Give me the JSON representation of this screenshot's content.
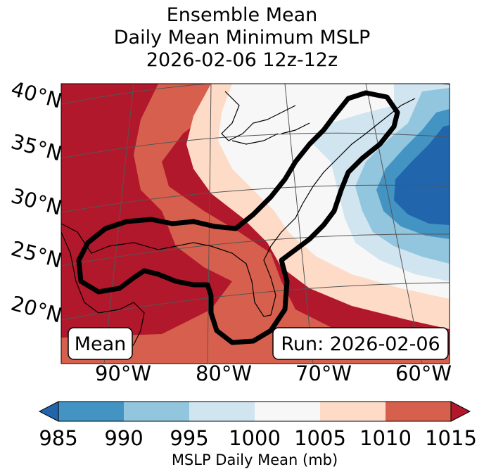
{
  "title": {
    "line1": "Ensemble Mean",
    "line2": "Daily Mean Minimum MSLP",
    "line3": "2026-02-06 12z-12z"
  },
  "map": {
    "lat_labels": [
      "40°N",
      "35°N",
      "30°N",
      "25°N",
      "20°N"
    ],
    "lon_labels": [
      "90°W",
      "80°W",
      "70°W",
      "60°W"
    ],
    "mean_box_label": "Mean",
    "run_box_label": "Run: 2026-02-06",
    "outline_color": "#000000"
  },
  "colorbar": {
    "label": "MSLP Daily Mean (mb)",
    "ticks": [
      "985",
      "990",
      "995",
      "1000",
      "1005",
      "1010",
      "1015"
    ],
    "colors": {
      "below": "#2166ac",
      "b985_990": "#4393c3",
      "b990_995": "#92c5de",
      "b995_1000": "#d1e5f0",
      "b1000_1005": "#f7f7f7",
      "b1005_1010": "#fddbc7",
      "b1010_1015": "#d6604d",
      "above": "#b2182b"
    }
  }
}
